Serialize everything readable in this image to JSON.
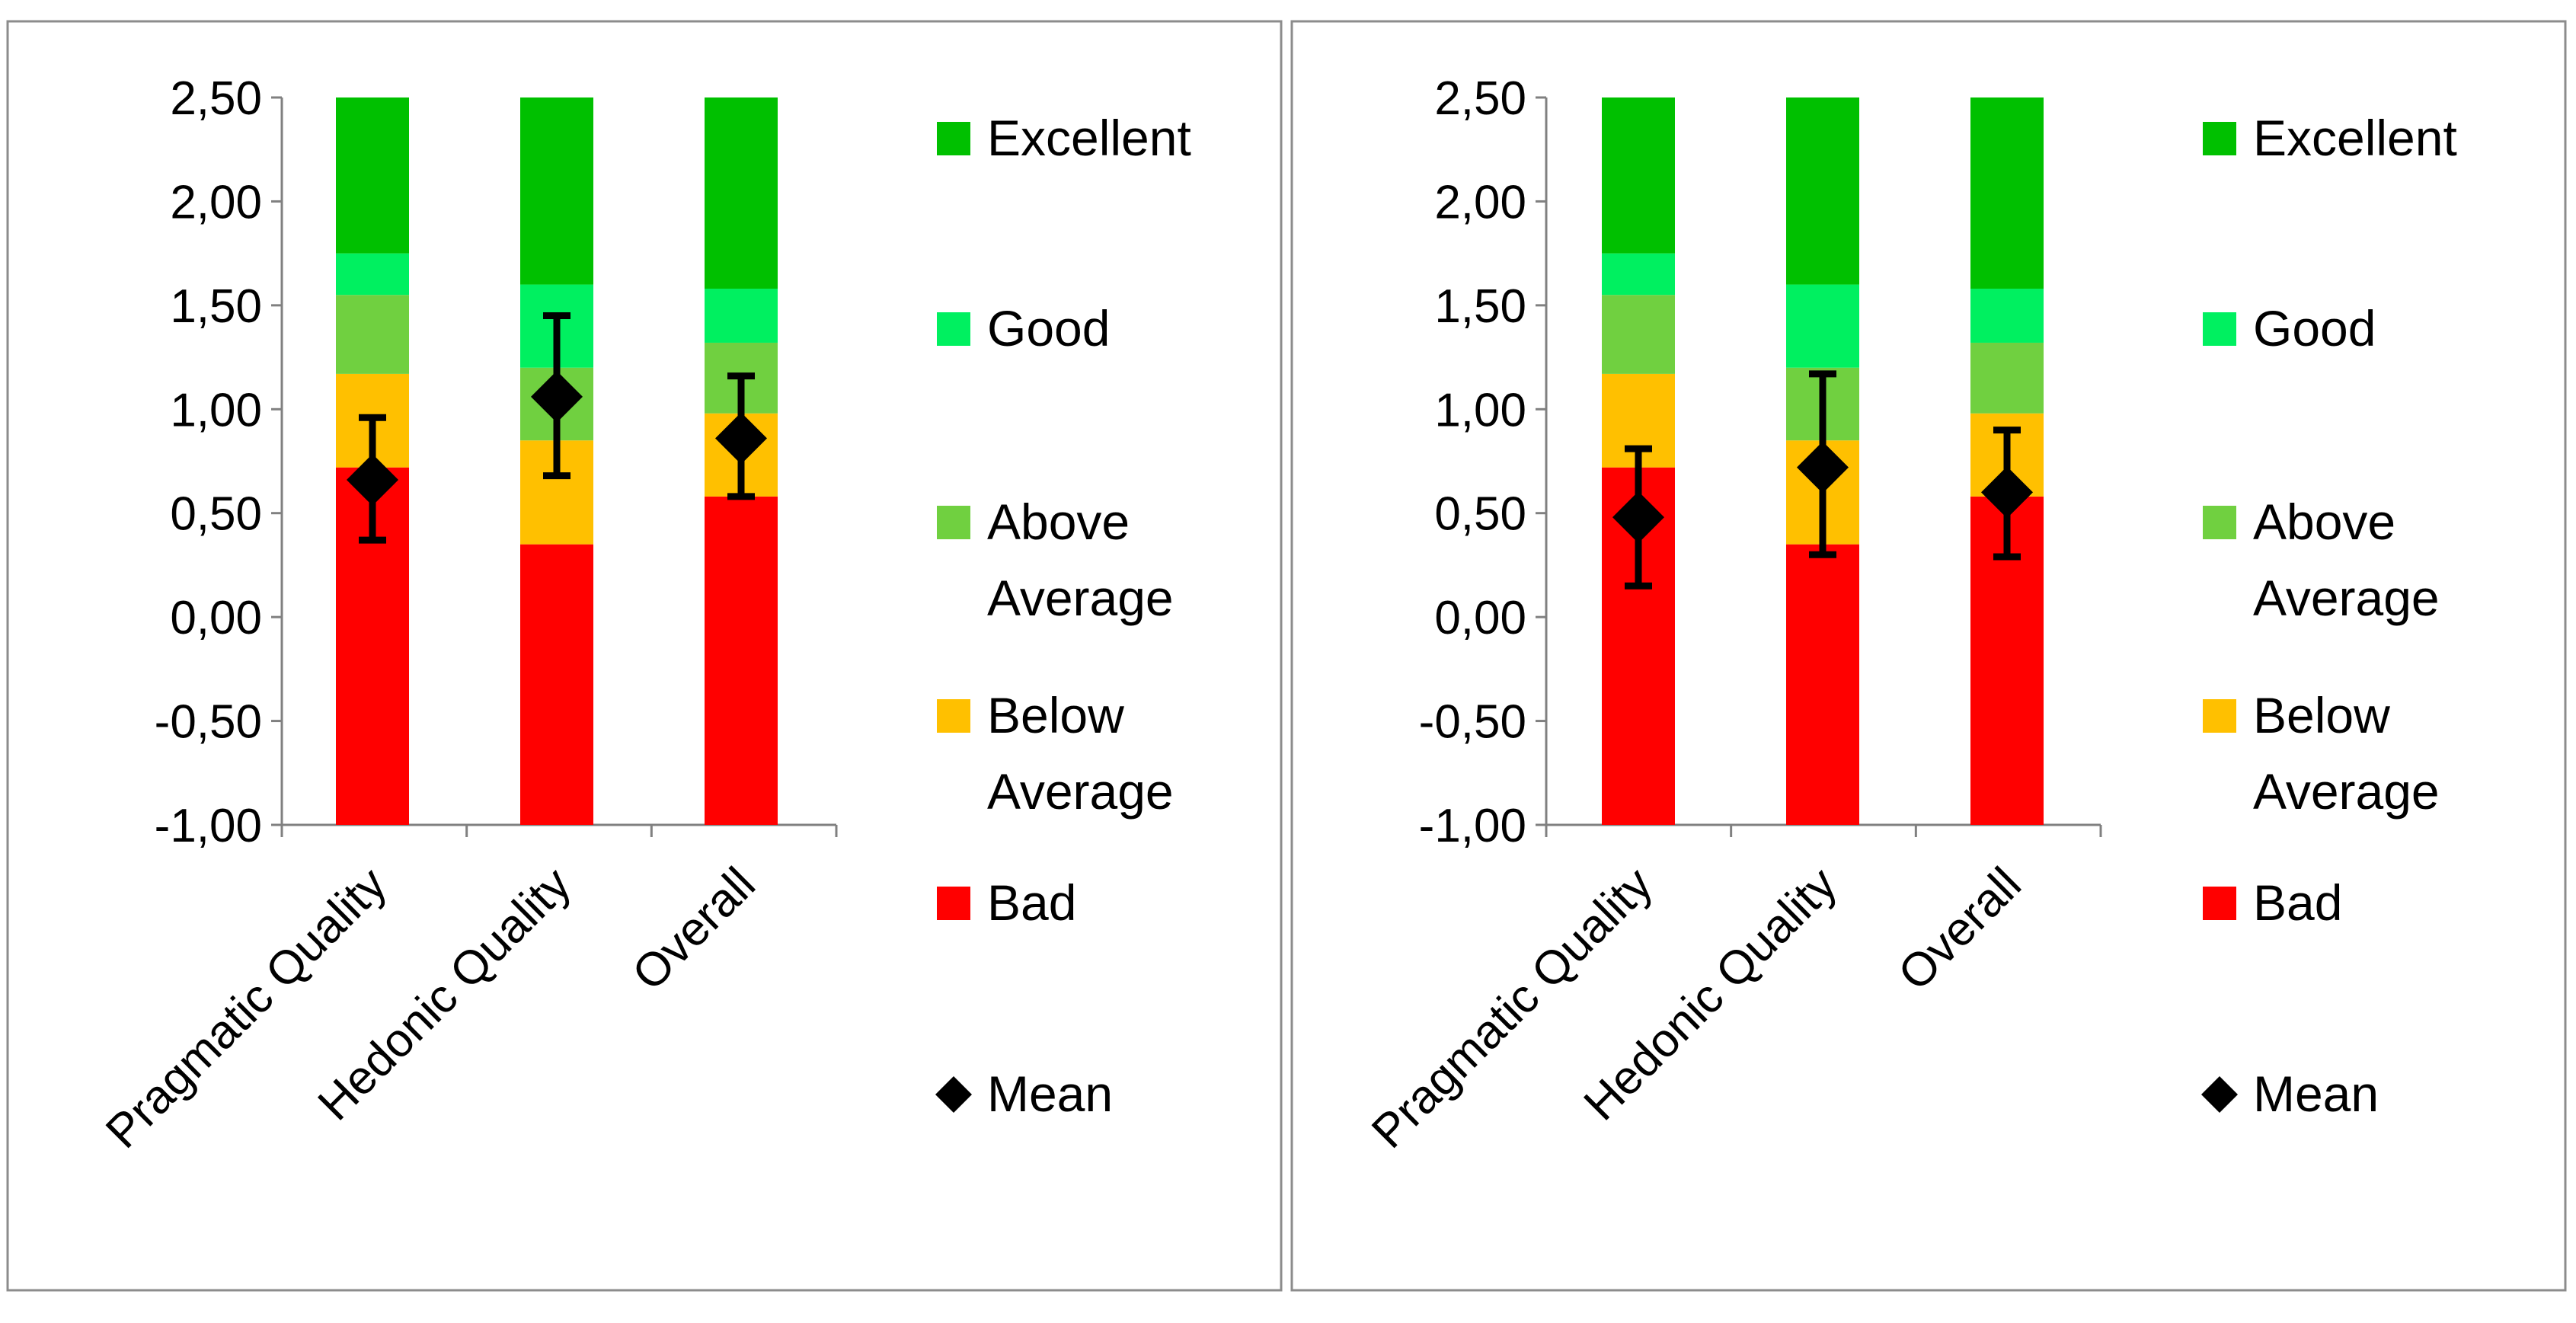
{
  "colors": {
    "bad": "#FF0000",
    "below_average": "#FFC000",
    "above_average": "#70D040",
    "good": "#00F060",
    "excellent": "#00C000",
    "mean": "#000000",
    "frame": "#8c8c8c",
    "axis": "#808080"
  },
  "chart_data": [
    {
      "type": "bar",
      "subtype": "stacked-benchmark-with-mean-and-error-bars",
      "categories": [
        "Pragmatic Quality",
        "Hedonic Quality",
        "Overall"
      ],
      "ylim": [
        -1.0,
        2.5
      ],
      "yticks": [
        "2,50",
        "2,00",
        "1,50",
        "1,00",
        "0,50",
        "0,00",
        "-0,50",
        "-1,00"
      ],
      "ytick_values": [
        2.5,
        2.0,
        1.5,
        1.0,
        0.5,
        0.0,
        -0.5,
        -1.0
      ],
      "grid": false,
      "legend_position": "right",
      "series": [
        {
          "name": "Bad",
          "key": "bad",
          "bounds": [
            [
              -1.0,
              0.72
            ],
            [
              -1.0,
              0.35
            ],
            [
              -1.0,
              0.58
            ]
          ]
        },
        {
          "name": "Below Average",
          "key": "below_average",
          "bounds": [
            [
              0.72,
              1.17
            ],
            [
              0.35,
              0.85
            ],
            [
              0.58,
              0.98
            ]
          ]
        },
        {
          "name": "Above Average",
          "key": "above_average",
          "bounds": [
            [
              1.17,
              1.55
            ],
            [
              0.85,
              1.2
            ],
            [
              0.98,
              1.32
            ]
          ]
        },
        {
          "name": "Good",
          "key": "good",
          "bounds": [
            [
              1.55,
              1.75
            ],
            [
              1.2,
              1.6
            ],
            [
              1.32,
              1.58
            ]
          ]
        },
        {
          "name": "Excellent",
          "key": "excellent",
          "bounds": [
            [
              1.75,
              2.5
            ],
            [
              1.6,
              2.5
            ],
            [
              1.58,
              2.5
            ]
          ]
        }
      ],
      "mean": {
        "name": "Mean",
        "values": [
          0.66,
          1.06,
          0.86
        ],
        "lower": [
          0.37,
          0.68,
          0.58
        ],
        "upper": [
          0.96,
          1.45,
          1.16
        ]
      },
      "legend": [
        {
          "key": "excellent",
          "lines": [
            "Excellent"
          ]
        },
        {
          "key": "good",
          "lines": [
            "Good"
          ]
        },
        {
          "key": "above_average",
          "lines": [
            "Above",
            "Average"
          ]
        },
        {
          "key": "below_average",
          "lines": [
            "Below",
            "Average"
          ]
        },
        {
          "key": "bad",
          "lines": [
            "Bad"
          ]
        },
        {
          "key": "mean",
          "lines": [
            "Mean"
          ],
          "marker": "diamond"
        }
      ]
    },
    {
      "type": "bar",
      "subtype": "stacked-benchmark-with-mean-and-error-bars",
      "categories": [
        "Pragmatic Quality",
        "Hedonic Quality",
        "Overall"
      ],
      "ylim": [
        -1.0,
        2.5
      ],
      "yticks": [
        "2,50",
        "2,00",
        "1,50",
        "1,00",
        "0,50",
        "0,00",
        "-0,50",
        "-1,00"
      ],
      "ytick_values": [
        2.5,
        2.0,
        1.5,
        1.0,
        0.5,
        0.0,
        -0.5,
        -1.0
      ],
      "grid": false,
      "legend_position": "right",
      "series": [
        {
          "name": "Bad",
          "key": "bad",
          "bounds": [
            [
              -1.0,
              0.72
            ],
            [
              -1.0,
              0.35
            ],
            [
              -1.0,
              0.58
            ]
          ]
        },
        {
          "name": "Below Average",
          "key": "below_average",
          "bounds": [
            [
              0.72,
              1.17
            ],
            [
              0.35,
              0.85
            ],
            [
              0.58,
              0.98
            ]
          ]
        },
        {
          "name": "Above Average",
          "key": "above_average",
          "bounds": [
            [
              1.17,
              1.55
            ],
            [
              0.85,
              1.2
            ],
            [
              0.98,
              1.32
            ]
          ]
        },
        {
          "name": "Good",
          "key": "good",
          "bounds": [
            [
              1.55,
              1.75
            ],
            [
              1.2,
              1.6
            ],
            [
              1.32,
              1.58
            ]
          ]
        },
        {
          "name": "Excellent",
          "key": "excellent",
          "bounds": [
            [
              1.75,
              2.5
            ],
            [
              1.6,
              2.5
            ],
            [
              1.58,
              2.5
            ]
          ]
        }
      ],
      "mean": {
        "name": "Mean",
        "values": [
          0.48,
          0.72,
          0.6
        ],
        "lower": [
          0.15,
          0.3,
          0.29
        ],
        "upper": [
          0.81,
          1.17,
          0.9
        ]
      },
      "legend": [
        {
          "key": "excellent",
          "lines": [
            "Excellent"
          ]
        },
        {
          "key": "good",
          "lines": [
            "Good"
          ]
        },
        {
          "key": "above_average",
          "lines": [
            "Above",
            "Average"
          ]
        },
        {
          "key": "below_average",
          "lines": [
            "Below",
            "Average"
          ]
        },
        {
          "key": "bad",
          "lines": [
            "Bad"
          ]
        },
        {
          "key": "mean",
          "lines": [
            "Mean"
          ],
          "marker": "diamond"
        }
      ]
    }
  ]
}
